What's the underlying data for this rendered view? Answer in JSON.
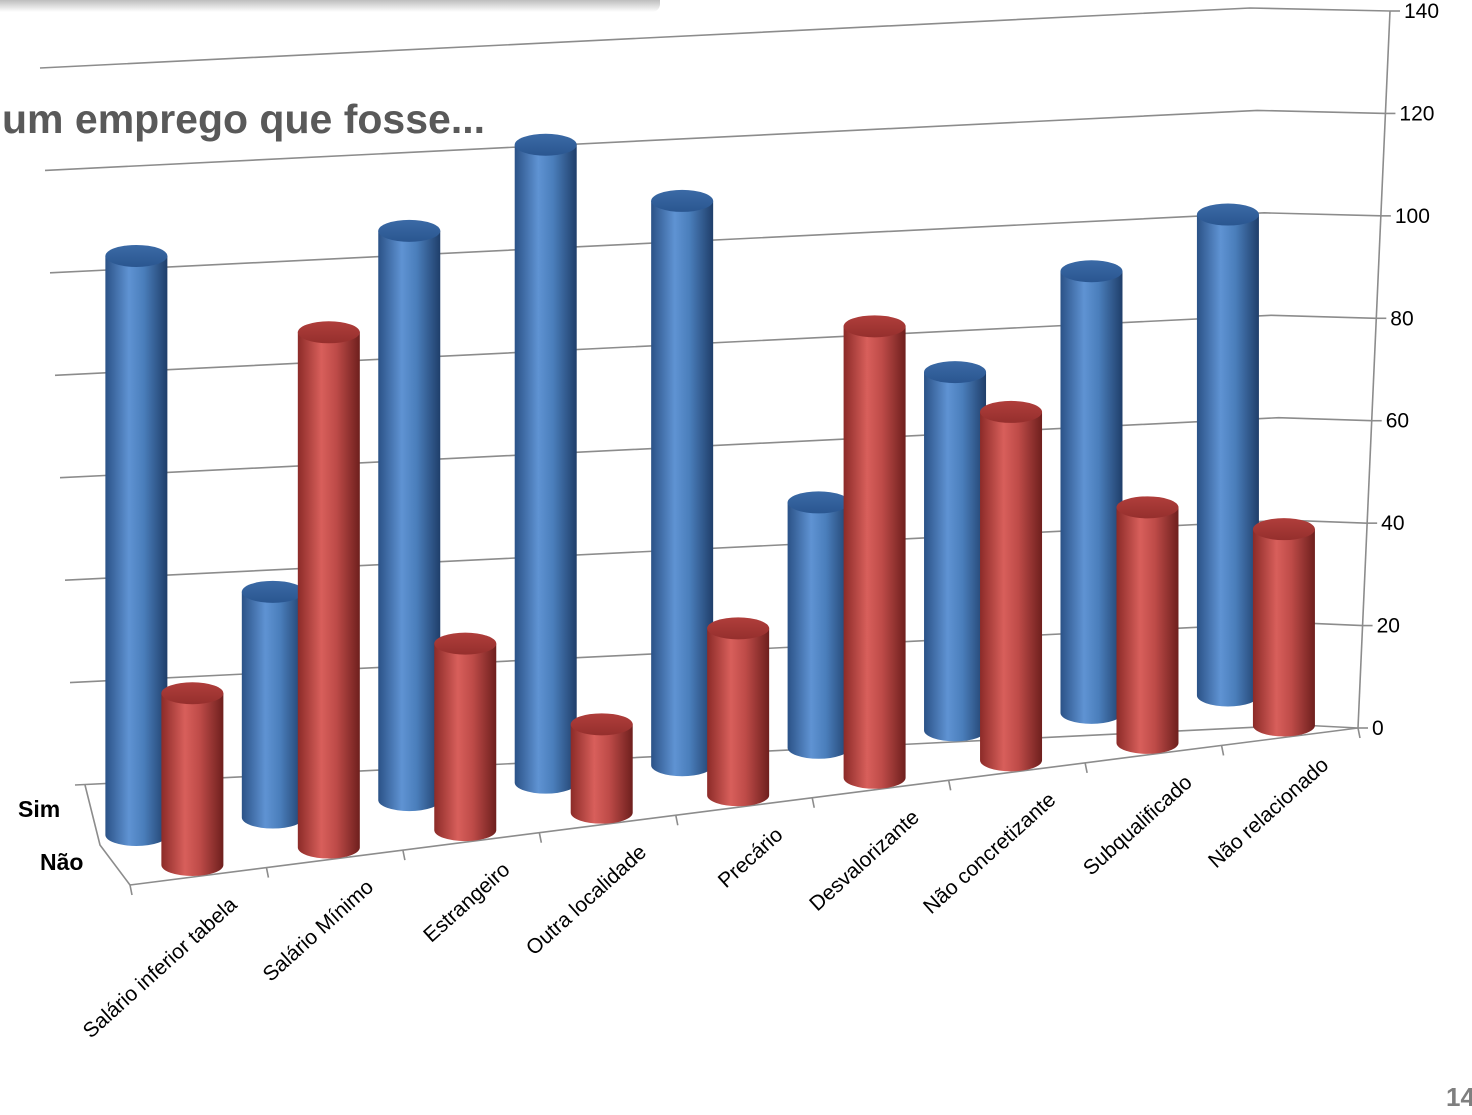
{
  "page": {
    "title": "um emprego que fosse...",
    "page_number": "14"
  },
  "chart_data": {
    "type": "bar",
    "style": "3d-cylinder",
    "title": "",
    "xlabel": "",
    "ylabel": "",
    "ylim": [
      0,
      140
    ],
    "yticks": [
      0,
      20,
      40,
      60,
      80,
      100,
      120,
      140
    ],
    "grid": true,
    "categories": [
      "Salário inferior tabela",
      "Salário Mínimo",
      "Estrangeiro",
      "Outra localidade",
      "Precário",
      "Desvalorizante",
      "Não concretizante",
      "Subqualificado",
      "Não relacionado"
    ],
    "series": [
      {
        "name": "Sim",
        "color": "#4a7ebb",
        "values": [
          118,
          46,
          116,
          130,
          115,
          50,
          73,
          90,
          98
        ]
      },
      {
        "name": "Não",
        "color": "#be4b48",
        "values": [
          35,
          105,
          38,
          18,
          34,
          92,
          71,
          48,
          40
        ]
      }
    ]
  }
}
